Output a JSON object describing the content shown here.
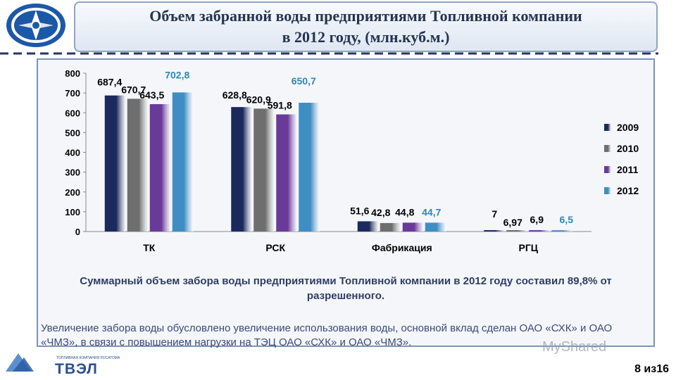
{
  "header": {
    "title_line1": "Объем забранной воды предприятиями Топливной компании",
    "title_line2": "в 2012 году, (млн.куб.м.)"
  },
  "chart_data": {
    "type": "bar",
    "categories": [
      "ТК",
      "РСК",
      "Фабрикация",
      "РГЦ"
    ],
    "series": [
      {
        "name": "2009",
        "values": [
          687.4,
          628.8,
          51.6,
          7
        ],
        "labels": [
          "687,4",
          "628,8",
          "51,6",
          "7"
        ],
        "color": "#1b2a5c"
      },
      {
        "name": "2010",
        "values": [
          670.7,
          620.9,
          42.8,
          6.97
        ],
        "labels": [
          "670,7",
          "620,9",
          "42,8",
          "6,97"
        ],
        "color": "#6e6e6e"
      },
      {
        "name": "2011",
        "values": [
          643.5,
          591.8,
          44.8,
          6.9
        ],
        "labels": [
          "643,5",
          "591,8",
          "44,8",
          "6,9"
        ],
        "color": "#6a3a9a"
      },
      {
        "name": "2012",
        "values": [
          702.8,
          650.7,
          44.7,
          6.5
        ],
        "labels": [
          "702,8",
          "650,7",
          "44,7",
          "6,5"
        ],
        "color": "#3e8ec4"
      }
    ],
    "ylim": [
      0,
      800
    ],
    "yticks": [
      0,
      100,
      200,
      300,
      400,
      500,
      600,
      700,
      800
    ],
    "label_colors": [
      "#000000",
      "#000000",
      "#000000",
      "#2f86b7"
    ],
    "legend_position": "right",
    "xlabel": "",
    "ylabel": "",
    "grid": false
  },
  "summary": "Суммарный объем забора воды предприятиями Топливной компании в 2012 году составил 89,8% от разрешенного.",
  "note": "Увеличение забора воды обусловлено увеличение использования воды, основной вклад сделан ОАО «СХК» и ОАО «ЧМЗ», в связи с повышением нагрузки на ТЭЦ ОАО «СХК» и ОАО «ЧМЗ».",
  "footer": {
    "logo_caption": "ТОПЛИВНАЯ КОМПАНИЯ РОСАТОМА",
    "logo_name": "ТВЭЛ",
    "page": "8 из16",
    "watermark": "MyShared"
  }
}
